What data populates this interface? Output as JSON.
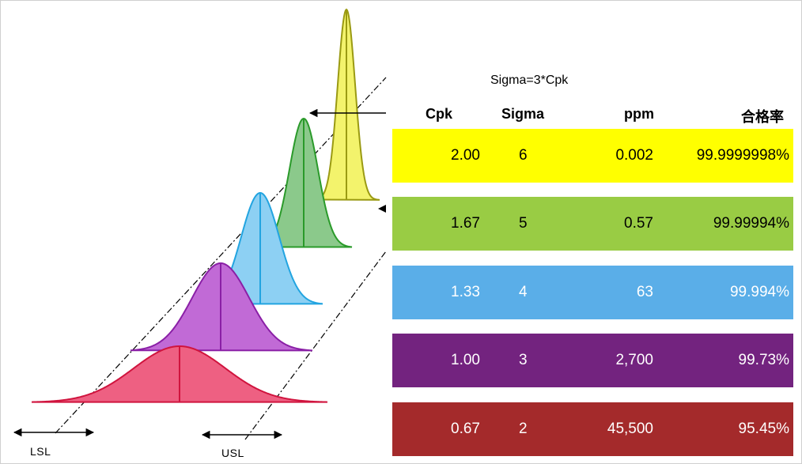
{
  "diagram": {
    "lsl_label": "LSL",
    "usl_label": "USL"
  },
  "table": {
    "formula": "Sigma=3*Cpk",
    "headers": {
      "cpk": "Cpk",
      "sigma": "Sigma",
      "ppm": "ppm",
      "rate": "合格率"
    },
    "rows": [
      {
        "cpk": "2.00",
        "sigma": "6",
        "ppm": "0.002",
        "rate": "99.9999998%",
        "bg": "#ffff00",
        "fg": "#000000"
      },
      {
        "cpk": "1.67",
        "sigma": "5",
        "ppm": "0.57",
        "rate": "99.99994%",
        "bg": "#99cc44",
        "fg": "#000000"
      },
      {
        "cpk": "1.33",
        "sigma": "4",
        "ppm": "63",
        "rate": "99.994%",
        "bg": "#5aaee8",
        "fg": "#ffffff"
      },
      {
        "cpk": "1.00",
        "sigma": "3",
        "ppm": "2,700",
        "rate": "99.73%",
        "bg": "#73237f",
        "fg": "#ffffff"
      },
      {
        "cpk": "0.67",
        "sigma": "2",
        "ppm": "45,500",
        "rate": "95.45%",
        "bg": "#a42a2b",
        "fg": "#ffffff"
      }
    ]
  },
  "curve_colors": {
    "yellow_fill": "#f3f36c",
    "yellow_stroke": "#9a9a12",
    "green_fill": "#8bc98b",
    "green_stroke": "#2a9a2a",
    "blue_fill": "#8dd0f3",
    "blue_stroke": "#22a4e0",
    "purple_fill": "#c16ad6",
    "purple_stroke": "#8a1fa6",
    "red_fill": "#ee6082",
    "red_stroke": "#d0143e"
  }
}
